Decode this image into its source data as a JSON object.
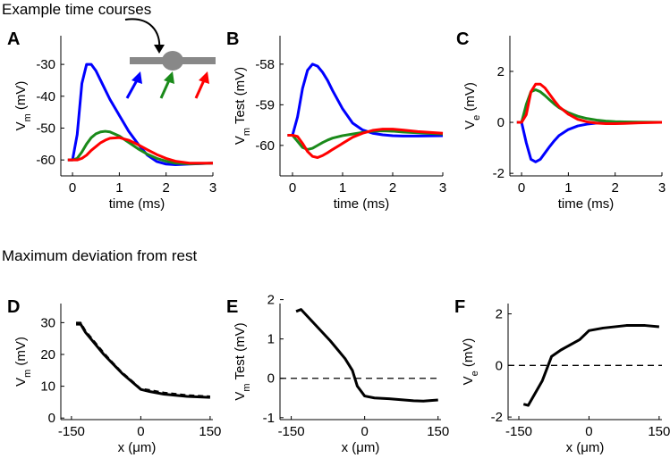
{
  "sections": [
    "Example time courses",
    "Maximum deviation from rest"
  ],
  "chart_data": [
    {
      "type": "line",
      "label": "A",
      "xlabel": "time (ms)",
      "ylabel_parts": [
        "V",
        "m",
        " (mV)"
      ],
      "x": [
        -0.1,
        0,
        0.1,
        0.2,
        0.3,
        0.4,
        0.5,
        0.6,
        0.7,
        0.8,
        1.0,
        1.2,
        1.4,
        1.6,
        1.8,
        2.0,
        2.2,
        2.5,
        3.0
      ],
      "xlim": [
        -0.25,
        3
      ],
      "ylim": [
        -65,
        -21
      ],
      "xticks": [
        0,
        1,
        2,
        3
      ],
      "yticks": [
        -60,
        -50,
        -40,
        -30
      ],
      "series": [
        {
          "color": "#0000ff",
          "values": [
            -60,
            -60,
            -52,
            -36,
            -30,
            -30,
            -32,
            -35,
            -38,
            -41,
            -46,
            -51,
            -55,
            -58.5,
            -60.5,
            -61.3,
            -61.5,
            -61.3,
            -61
          ]
        },
        {
          "color": "#1a8a1a",
          "values": [
            -60,
            -60,
            -59.5,
            -57.5,
            -55,
            -53,
            -51.8,
            -51.2,
            -51,
            -51.2,
            -52.5,
            -54.5,
            -56.5,
            -58.2,
            -59.5,
            -60.4,
            -61,
            -61.2,
            -61
          ]
        },
        {
          "color": "#ff0000",
          "values": [
            -60,
            -60,
            -60,
            -59.5,
            -58.5,
            -57,
            -55.8,
            -54.6,
            -53.8,
            -53.2,
            -53,
            -53.8,
            -55.2,
            -56.8,
            -58.3,
            -59.5,
            -60.4,
            -61,
            -61
          ]
        }
      ]
    },
    {
      "type": "line",
      "label": "B",
      "xlabel": "time (ms)",
      "ylabel_parts": [
        "V",
        "m",
        " Test (mV)"
      ],
      "x": [
        -0.1,
        0,
        0.1,
        0.2,
        0.3,
        0.4,
        0.5,
        0.6,
        0.7,
        0.8,
        1.0,
        1.2,
        1.4,
        1.6,
        1.8,
        2.0,
        2.2,
        2.5,
        3.0
      ],
      "xlim": [
        -0.25,
        3
      ],
      "ylim": [
        -60.75,
        -57.3
      ],
      "xticks": [
        0,
        1,
        2,
        3
      ],
      "yticks": [
        -60,
        -59,
        -58
      ],
      "series": [
        {
          "color": "#0000ff",
          "values": [
            -59.75,
            -59.75,
            -59.3,
            -58.6,
            -58.15,
            -58,
            -58.05,
            -58.2,
            -58.4,
            -58.65,
            -59.1,
            -59.45,
            -59.62,
            -59.7,
            -59.74,
            -59.76,
            -59.77,
            -59.77,
            -59.76
          ]
        },
        {
          "color": "#1a8a1a",
          "values": [
            -59.75,
            -59.75,
            -59.9,
            -60.05,
            -60.1,
            -60.07,
            -60.0,
            -59.93,
            -59.87,
            -59.82,
            -59.76,
            -59.72,
            -59.68,
            -59.65,
            -59.64,
            -59.65,
            -59.67,
            -59.69,
            -59.72
          ]
        },
        {
          "color": "#ff0000",
          "values": [
            -59.75,
            -59.75,
            -59.78,
            -59.95,
            -60.15,
            -60.27,
            -60.3,
            -60.25,
            -60.18,
            -60.1,
            -59.95,
            -59.8,
            -59.7,
            -59.63,
            -59.6,
            -59.6,
            -59.62,
            -59.66,
            -59.7
          ]
        }
      ]
    },
    {
      "type": "line",
      "label": "C",
      "xlabel": "time (ms)",
      "ylabel_parts": [
        "V",
        "e",
        " (mV)"
      ],
      "x": [
        -0.1,
        0,
        0.1,
        0.2,
        0.3,
        0.4,
        0.5,
        0.6,
        0.7,
        0.8,
        1.0,
        1.2,
        1.4,
        1.6,
        1.8,
        2.0,
        2.2,
        2.5,
        3.0
      ],
      "xlim": [
        -0.25,
        3
      ],
      "ylim": [
        -2.1,
        3.4
      ],
      "xticks": [
        0,
        1,
        2,
        3
      ],
      "yticks": [
        -2,
        0,
        2
      ],
      "series": [
        {
          "color": "#0000ff",
          "values": [
            0,
            0,
            -0.8,
            -1.45,
            -1.55,
            -1.45,
            -1.2,
            -0.95,
            -0.72,
            -0.52,
            -0.28,
            -0.14,
            -0.07,
            -0.03,
            -0.01,
            0,
            0,
            0,
            0
          ]
        },
        {
          "color": "#1a8a1a",
          "values": [
            0,
            0,
            0.7,
            1.2,
            1.28,
            1.2,
            1.05,
            0.88,
            0.72,
            0.58,
            0.38,
            0.24,
            0.15,
            0.09,
            0.05,
            0.03,
            0.02,
            0.01,
            0
          ]
        },
        {
          "color": "#ff0000",
          "values": [
            0,
            0,
            0.3,
            1.2,
            1.5,
            1.5,
            1.35,
            1.1,
            0.85,
            0.62,
            0.32,
            0.12,
            0.02,
            -0.03,
            -0.05,
            -0.05,
            -0.04,
            -0.02,
            0
          ]
        }
      ]
    },
    {
      "type": "line",
      "label": "D",
      "xlabel": "x (μm)",
      "ylabel_parts": [
        "V",
        "m",
        " (mV)"
      ],
      "x": [
        -140,
        -130,
        -120,
        -100,
        -80,
        -60,
        -40,
        -20,
        0,
        20,
        50,
        100,
        150
      ],
      "xlim": [
        -173,
        156
      ],
      "ylim": [
        -0.5,
        36
      ],
      "xticks": [
        -150,
        0,
        150
      ],
      "yticks": [
        0,
        10,
        20,
        30
      ],
      "series": [
        {
          "color": "#000000",
          "values": [
            29.5,
            29.5,
            27,
            23.5,
            20,
            17,
            14,
            11.5,
            9,
            8.3,
            7.5,
            6.8,
            6.5
          ]
        },
        {
          "color": "#000000",
          "dash": true,
          "values": [
            30,
            30,
            27.5,
            24,
            20.5,
            17.3,
            14.3,
            11.8,
            9.2,
            8.8,
            8,
            7.2,
            6.8
          ]
        }
      ]
    },
    {
      "type": "line",
      "label": "E",
      "xlabel": "x (μm)",
      "ylabel_parts": [
        "V",
        "m",
        " Test (mV)"
      ],
      "x": [
        -140,
        -130,
        -100,
        -70,
        -40,
        -25,
        -15,
        0,
        20,
        50,
        100,
        120,
        150
      ],
      "xlim": [
        -173,
        156
      ],
      "ylim": [
        -1.05,
        1.9
      ],
      "xticks": [
        -150,
        0,
        150
      ],
      "yticks": [
        -1,
        0,
        1,
        2
      ],
      "hline": 0,
      "series": [
        {
          "color": "#000000",
          "values": [
            1.7,
            1.75,
            1.35,
            0.95,
            0.5,
            0.2,
            -0.2,
            -0.45,
            -0.5,
            -0.52,
            -0.57,
            -0.58,
            -0.55
          ]
        }
      ]
    },
    {
      "type": "line",
      "label": "F",
      "xlabel": "x (μm)",
      "ylabel_parts": [
        "V",
        "e",
        " (mV)"
      ],
      "x": [
        -140,
        -130,
        -100,
        -80,
        -60,
        -20,
        0,
        30,
        80,
        120,
        150
      ],
      "xlim": [
        -173,
        156
      ],
      "ylim": [
        -2.1,
        2.4
      ],
      "xticks": [
        -150,
        0,
        150
      ],
      "yticks": [
        -2,
        0,
        2
      ],
      "hline": 0,
      "series": [
        {
          "color": "#000000",
          "values": [
            -1.5,
            -1.55,
            -0.6,
            0.35,
            0.6,
            1,
            1.35,
            1.45,
            1.55,
            1.55,
            1.5
          ]
        }
      ]
    }
  ]
}
